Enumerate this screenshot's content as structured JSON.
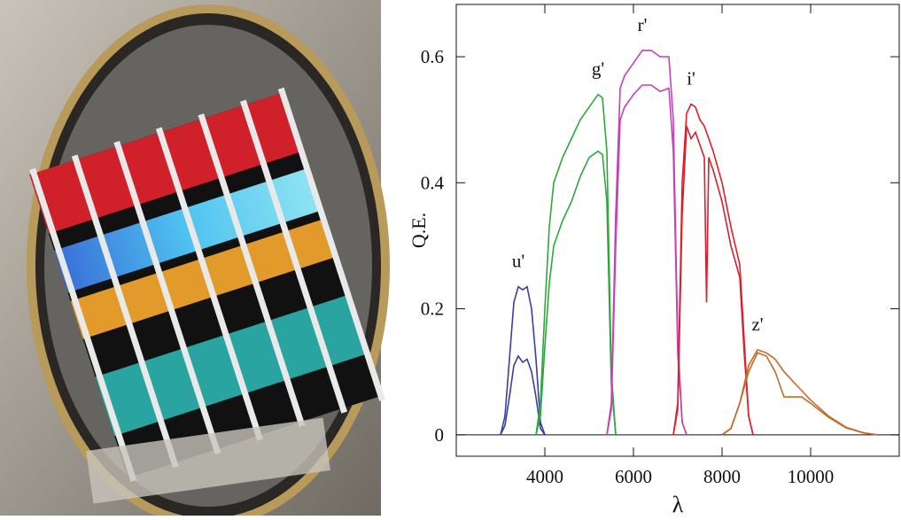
{
  "chart_data": {
    "type": "line",
    "x_label": "λ",
    "y_label": "Q.E.",
    "xlim": [
      2000,
      12000
    ],
    "ylim": [
      -0.034,
      0.683
    ],
    "xticks": [
      4000,
      6000,
      8000,
      10000
    ],
    "yticks": [
      0,
      0.2,
      0.4,
      0.6
    ],
    "series": [
      {
        "name": "u'",
        "color": "#3a3f9e",
        "x": [
          3000,
          3100,
          3200,
          3300,
          3400,
          3500,
          3600,
          3700,
          3800,
          3900,
          4000
        ],
        "curves": [
          {
            "values": [
              0,
              0.03,
              0.12,
              0.21,
              0.235,
              0.23,
              0.235,
              0.2,
              0.12,
              0.02,
              0
            ]
          },
          {
            "values": [
              0,
              0.015,
              0.06,
              0.11,
              0.125,
              0.115,
              0.12,
              0.1,
              0.06,
              0.01,
              0
            ]
          }
        ]
      },
      {
        "name": "g'",
        "color": "#2ea83a",
        "x": [
          3800,
          3900,
          4000,
          4100,
          4200,
          4400,
          4600,
          4800,
          5000,
          5200,
          5300,
          5400,
          5500,
          5600
        ],
        "curves": [
          {
            "values": [
              0,
              0.05,
              0.2,
              0.33,
              0.4,
              0.44,
              0.47,
              0.5,
              0.52,
              0.54,
              0.535,
              0.45,
              0.1,
              0
            ]
          },
          {
            "values": [
              0,
              0.03,
              0.14,
              0.24,
              0.3,
              0.34,
              0.37,
              0.41,
              0.44,
              0.45,
              0.445,
              0.37,
              0.08,
              0
            ]
          }
        ]
      },
      {
        "name": "r'",
        "color": "#c93fb6",
        "x": [
          5400,
          5500,
          5600,
          5700,
          5800,
          6000,
          6200,
          6400,
          6600,
          6800,
          6900,
          7000,
          7100,
          7200
        ],
        "curves": [
          {
            "values": [
              0,
              0.05,
              0.35,
              0.55,
              0.57,
              0.59,
              0.61,
              0.61,
              0.6,
              0.6,
              0.5,
              0.15,
              0.02,
              0
            ]
          },
          {
            "values": [
              0,
              0.04,
              0.3,
              0.5,
              0.52,
              0.54,
              0.555,
              0.555,
              0.545,
              0.55,
              0.45,
              0.13,
              0.02,
              0
            ]
          }
        ]
      },
      {
        "name": "i'",
        "color": "#e01d2b",
        "x": [
          6900,
          7000,
          7100,
          7200,
          7300,
          7400,
          7500,
          7600,
          7650,
          7700,
          7800,
          8000,
          8200,
          8400,
          8500,
          8600,
          8700
        ],
        "curves": [
          {
            "values": [
              0,
              0.05,
              0.4,
              0.51,
              0.525,
              0.52,
              0.5,
              0.49,
              0.48,
              0.47,
              0.45,
              0.4,
              0.33,
              0.27,
              0.15,
              0.03,
              0
            ]
          },
          {
            "values": [
              0,
              0.04,
              0.35,
              0.49,
              0.47,
              0.48,
              0.46,
              0.44,
              0.21,
              0.44,
              0.42,
              0.37,
              0.3,
              0.25,
              0.13,
              0.03,
              0
            ]
          }
        ]
      },
      {
        "name": "z'",
        "color": "#c46a28",
        "x": [
          8000,
          8200,
          8400,
          8600,
          8800,
          9000,
          9200,
          9400,
          9600,
          9800,
          10000,
          10400,
          10800,
          11200,
          11500
        ],
        "curves": [
          {
            "values": [
              0,
              0.01,
              0.05,
              0.11,
              0.135,
              0.13,
              0.12,
              0.1,
              0.085,
              0.07,
              0.055,
              0.03,
              0.012,
              0.003,
              0
            ]
          },
          {
            "values": [
              0,
              0.01,
              0.05,
              0.1,
              0.13,
              0.125,
              0.1,
              0.06,
              0.06,
              0.06,
              0.05,
              0.028,
              0.011,
              0.003,
              0
            ]
          }
        ]
      }
    ]
  }
}
